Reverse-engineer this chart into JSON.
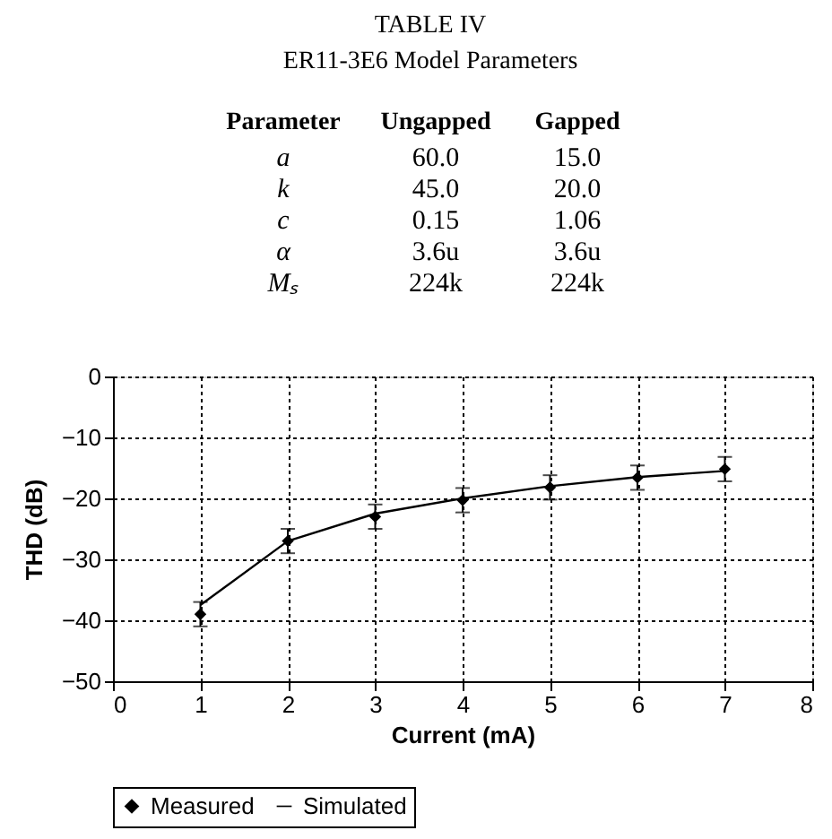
{
  "chart_data": {
    "type": "line",
    "annotations": [
      "TABLE IV",
      "ER11-3E6 Model Parameters",
      "Parameter",
      "Ungapped",
      "Gapped",
      "a",
      "60.0",
      "15.0",
      "k",
      "45.0",
      "20.0",
      "c",
      "0.15",
      "1.06",
      "α",
      "3.6u",
      "3.6u",
      "Mₛ",
      "224k",
      "224k"
    ],
    "xlabel": "Current (mA)",
    "ylabel": "THD (dB)",
    "x": [
      1,
      2,
      3,
      4,
      5,
      6,
      7
    ],
    "series": [
      {
        "name": "Measured",
        "type": "scatter",
        "marker": "diamond",
        "color": "#000000",
        "values": [
          -39,
          -27,
          -23,
          -20.3,
          -18.2,
          -16.6,
          -15.2
        ],
        "errors": [
          2,
          2,
          2,
          2,
          2,
          2,
          2
        ]
      },
      {
        "name": "Simulated",
        "type": "line",
        "marker": "none",
        "color": "#000000",
        "values": [
          -37.5,
          -27,
          -22.5,
          -20,
          -18,
          -16.5,
          -15.5
        ]
      }
    ],
    "xlim": [
      0,
      8
    ],
    "xticks": [
      0,
      1,
      2,
      3,
      4,
      5,
      6,
      7,
      8
    ],
    "ylim": [
      -50,
      0
    ],
    "yticks": [
      -50,
      -40,
      -30,
      -20,
      -10,
      0
    ],
    "grid": true,
    "legend": "bottom"
  }
}
